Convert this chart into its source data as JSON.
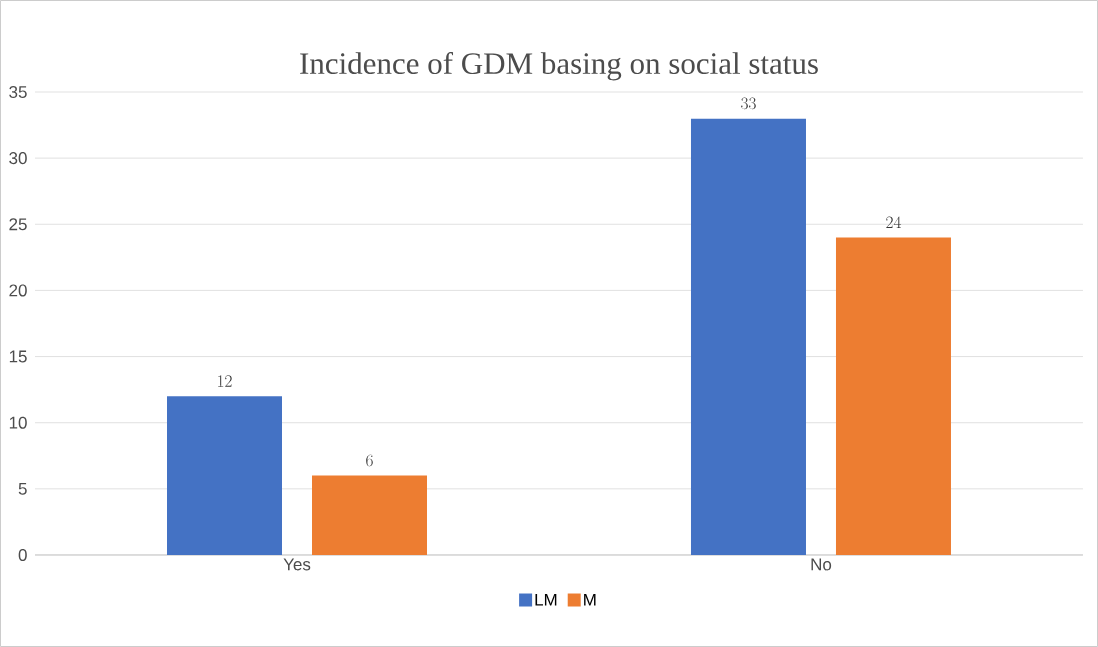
{
  "chart_data": {
    "type": "bar",
    "title": "Incidence of GDM basing on social status",
    "categories": [
      "Yes",
      "No"
    ],
    "series": [
      {
        "name": "LM",
        "color": "#4472c4",
        "values": [
          12,
          33
        ]
      },
      {
        "name": "M",
        "color": "#ed7d31",
        "values": [
          6,
          24
        ]
      }
    ],
    "ylim": [
      0,
      35
    ],
    "yticks": [
      0,
      5,
      10,
      15,
      20,
      25,
      30,
      35
    ],
    "grid": "y",
    "legend": "bottom",
    "data_labels": true
  }
}
